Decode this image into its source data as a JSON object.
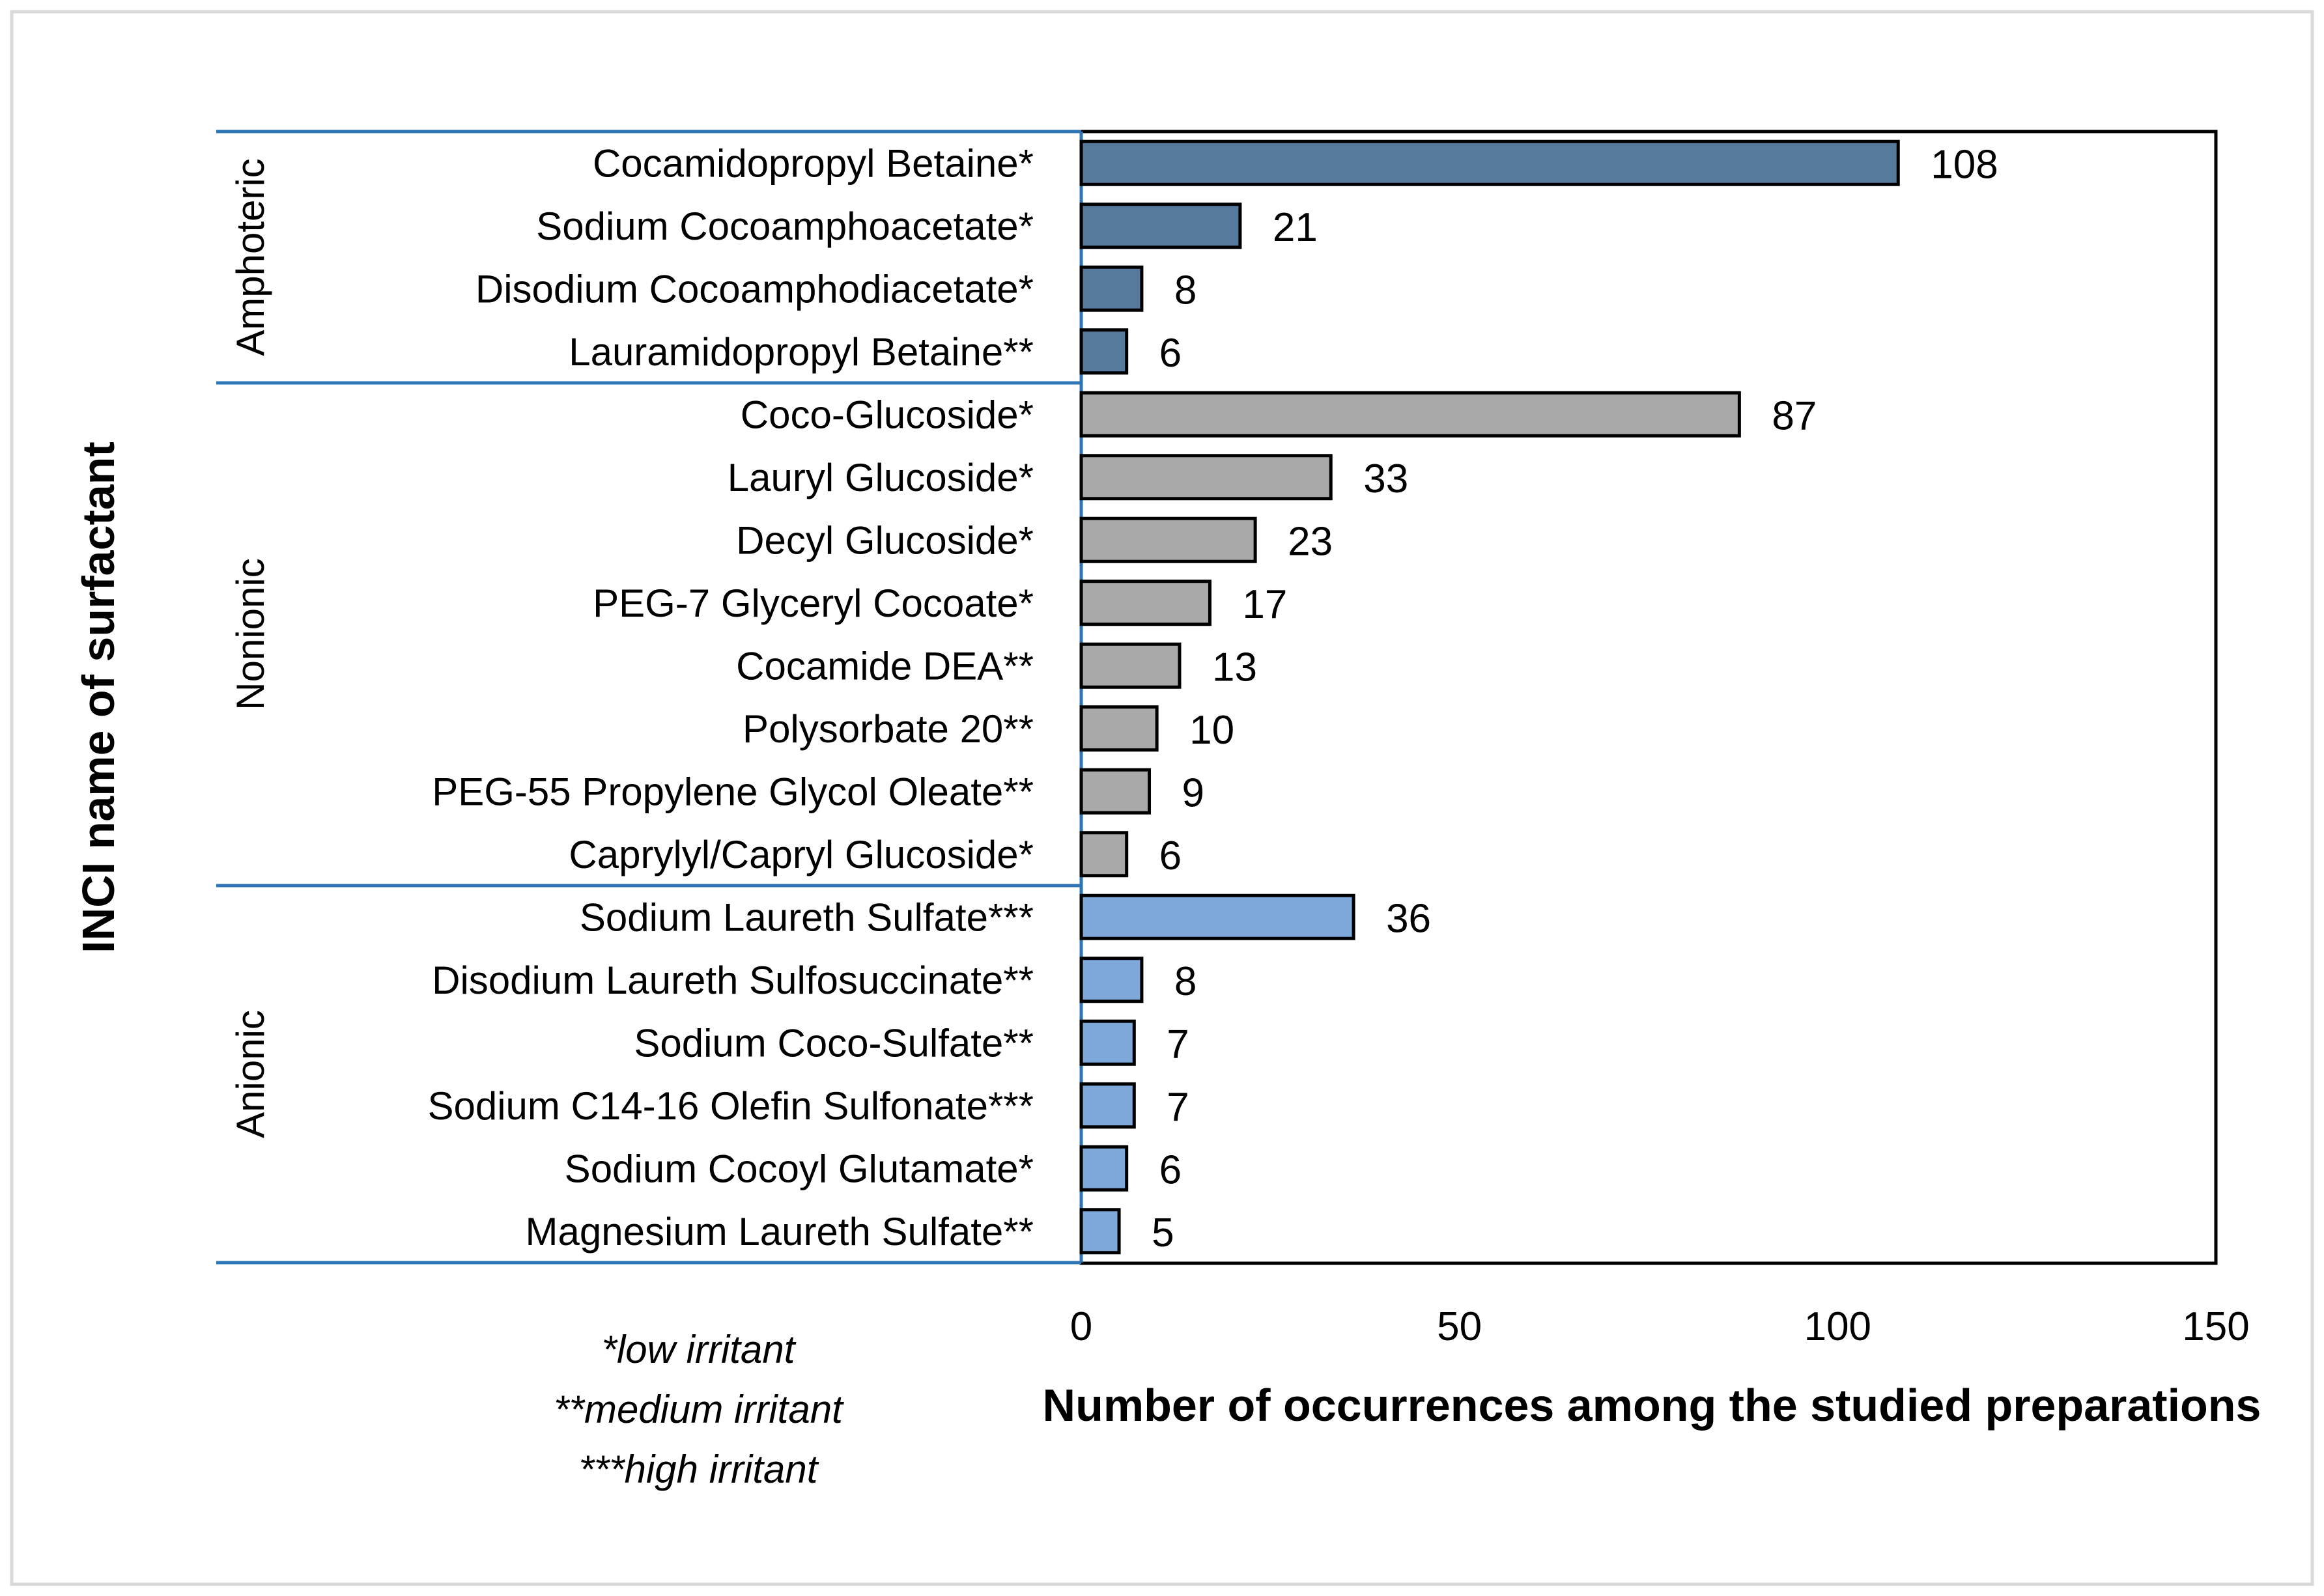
{
  "chart_data": {
    "type": "bar",
    "orientation": "horizontal",
    "xlabel": "Number of occurrences among the studied preparations",
    "ylabel": "INCI name of surfactant",
    "xlim": [
      0,
      150
    ],
    "xticks": [
      "0",
      "50",
      "100",
      "150"
    ],
    "grid": false,
    "groups": [
      {
        "name": "Amphoteric",
        "color": "#58799E",
        "categories": [
          {
            "label": "Cocamidopropyl Betaine*",
            "value": 108
          },
          {
            "label": "Sodium Cocoamphoacetate*",
            "value": 21
          },
          {
            "label": "Disodium Cocoamphodiacetate*",
            "value": 8
          },
          {
            "label": "Lauramidopropyl Betaine**",
            "value": 6
          }
        ]
      },
      {
        "name": "Nonionic",
        "color": "#A9A9A9",
        "categories": [
          {
            "label": "Coco-Glucoside*",
            "value": 87
          },
          {
            "label": "Lauryl Glucoside*",
            "value": 33
          },
          {
            "label": "Decyl Glucoside*",
            "value": 23
          },
          {
            "label": "PEG-7 Glyceryl Cocoate*",
            "value": 17
          },
          {
            "label": "Cocamide DEA**",
            "value": 13
          },
          {
            "label": "Polysorbate 20**",
            "value": 10
          },
          {
            "label": "PEG-55 Propylene Glycol Oleate**",
            "value": 9
          },
          {
            "label": "Caprylyl/Capryl Glucoside*",
            "value": 6
          }
        ]
      },
      {
        "name": "Anionic",
        "color": "#7EA7DA",
        "categories": [
          {
            "label": "Sodium Laureth Sulfate***",
            "value": 36
          },
          {
            "label": "Disodium Laureth Sulfosuccinate**",
            "value": 8
          },
          {
            "label": "Sodium Coco-Sulfate**",
            "value": 7
          },
          {
            "label": "Sodium C14-16 Olefin Sulfonate***",
            "value": 7
          },
          {
            "label": "Sodium Cocoyl Glutamate*",
            "value": 6
          },
          {
            "label": "Magnesium Laureth Sulfate**",
            "value": 5
          }
        ]
      }
    ],
    "notes": [
      "*low irritant",
      "**medium irritant",
      "***high irritant"
    ],
    "group_separator_color": "#2E75B6"
  }
}
